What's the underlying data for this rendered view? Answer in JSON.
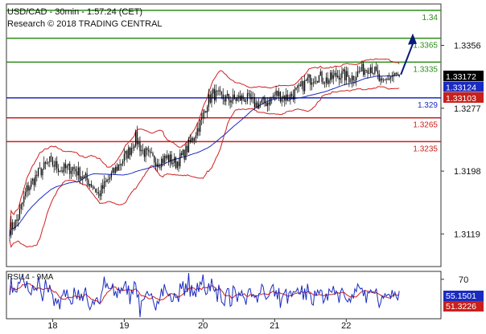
{
  "header": {
    "line1": "USD/CAD - 30min - 1:57:24 (CET)",
    "line2": "Research © 2018 TRADING CENTRAL"
  },
  "rsi_label": "RSI14 - 9MA",
  "colors": {
    "resistance": "#2e8b1a",
    "pivot": "#1a2bbf",
    "support": "#c8201c",
    "candle": "#000000",
    "bollinger": "#d02020",
    "ma": "#1a2bbf",
    "arrow": "#0a1a7a",
    "rsi_line": "#1a2bbf",
    "rsi_ma": "#d02020",
    "last_price_bg": "#000000",
    "tag_blue_bg": "#1a2bbf",
    "tag_red_bg": "#c8201c"
  },
  "chart_data": {
    "type": "candlestick",
    "title": "USD/CAD - 30min",
    "ylim": [
      1.3078,
      1.3408
    ],
    "y_ticks": [
      "1.3356",
      "1.3277",
      "1.3198",
      "1.3119"
    ],
    "x_ticks": [
      "18",
      "19",
      "20",
      "21",
      "22"
    ],
    "levels": [
      {
        "label": "1.34",
        "value": 1.34,
        "kind": "resistance"
      },
      {
        "label": "1.3365",
        "value": 1.3365,
        "kind": "resistance"
      },
      {
        "label": "1.3335",
        "value": 1.3335,
        "kind": "resistance"
      },
      {
        "label": "1.329",
        "value": 1.329,
        "kind": "pivot"
      },
      {
        "label": "1.3265",
        "value": 1.3265,
        "kind": "support"
      },
      {
        "label": "1.3235",
        "value": 1.3235,
        "kind": "support"
      }
    ],
    "price_tags": [
      {
        "label": "1.33172",
        "value": 1.33172,
        "style": "last"
      },
      {
        "label": "1.33124",
        "value": 1.33124,
        "style": "blue"
      },
      {
        "label": "1.33103",
        "value": 1.33103,
        "style": "red"
      }
    ],
    "close_path": [
      [
        0,
        1.3125
      ],
      [
        5,
        1.3135
      ],
      [
        12,
        1.3175
      ],
      [
        20,
        1.3195
      ],
      [
        28,
        1.321
      ],
      [
        36,
        1.32
      ],
      [
        44,
        1.3202
      ],
      [
        52,
        1.319
      ],
      [
        58,
        1.318
      ],
      [
        62,
        1.3168
      ],
      [
        68,
        1.3185
      ],
      [
        76,
        1.3205
      ],
      [
        84,
        1.3225
      ],
      [
        88,
        1.324
      ],
      [
        92,
        1.3225
      ],
      [
        98,
        1.3215
      ],
      [
        104,
        1.321
      ],
      [
        110,
        1.3215
      ],
      [
        116,
        1.3208
      ],
      [
        122,
        1.322
      ],
      [
        128,
        1.324
      ],
      [
        134,
        1.3262
      ],
      [
        138,
        1.3285
      ],
      [
        142,
        1.3295
      ],
      [
        148,
        1.329
      ],
      [
        156,
        1.3288
      ],
      [
        164,
        1.329
      ],
      [
        172,
        1.3282
      ],
      [
        180,
        1.3285
      ],
      [
        186,
        1.3295
      ],
      [
        194,
        1.329
      ],
      [
        202,
        1.33
      ],
      [
        208,
        1.3312
      ],
      [
        214,
        1.3318
      ],
      [
        222,
        1.3312
      ],
      [
        230,
        1.332
      ],
      [
        238,
        1.3315
      ],
      [
        246,
        1.3325
      ],
      [
        252,
        1.333
      ],
      [
        256,
        1.332
      ],
      [
        260,
        1.3305
      ],
      [
        264,
        1.3315
      ],
      [
        268,
        1.3318
      ],
      [
        272,
        1.3317
      ]
    ],
    "bars_count": 273,
    "day_start_bars": [
      30,
      80,
      135,
      185,
      235
    ],
    "arrow": {
      "from_value": 1.33172,
      "to_value": 1.3365
    },
    "rsi": {
      "label": "RSI14 - 9MA",
      "ylim": [
        20,
        80
      ],
      "level": "70",
      "rsi_tag": "55.1501",
      "ma_tag": "51.3226",
      "rsi_value": 55.1501,
      "ma_value": 51.3226
    }
  }
}
